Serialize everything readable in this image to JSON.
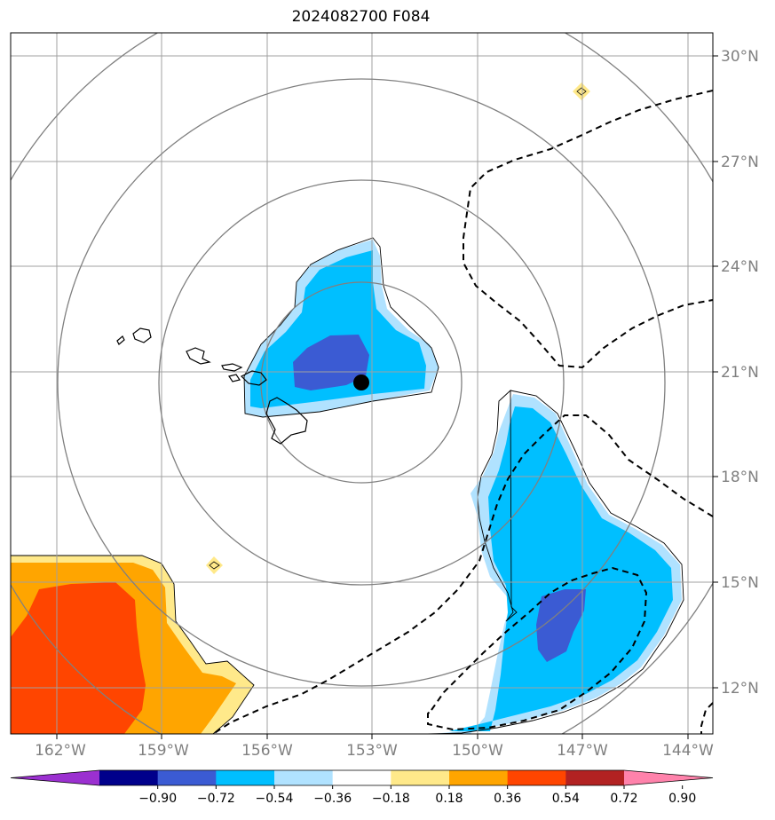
{
  "title": "2024082700 F084",
  "map": {
    "lat_labels": [
      "30°N",
      "27°N",
      "24°N",
      "21°N",
      "18°N",
      "15°N",
      "12°N"
    ],
    "lon_labels": [
      "162°W",
      "159°W",
      "156°W",
      "153°W",
      "150°W",
      "147°W",
      "144°W"
    ],
    "center_marker": {
      "lon": -153.3,
      "lat": 20.7
    },
    "colors": {
      "grid": "#a0a0a0",
      "range_rings": "#808080",
      "coastline": "#000000"
    }
  },
  "colorbar": {
    "ticks": [
      "−0.90",
      "−0.72",
      "−0.54",
      "−0.36",
      "−0.18",
      "0.18",
      "0.36",
      "0.54",
      "0.72",
      "0.90"
    ],
    "colors": [
      "#9b30d0",
      "#00008b",
      "#3b5bd3",
      "#00bfff",
      "#b0e2ff",
      "#ffffff",
      "#ffe98a",
      "#ffa500",
      "#ff4500",
      "#b22222",
      "#ff82ab"
    ]
  }
}
